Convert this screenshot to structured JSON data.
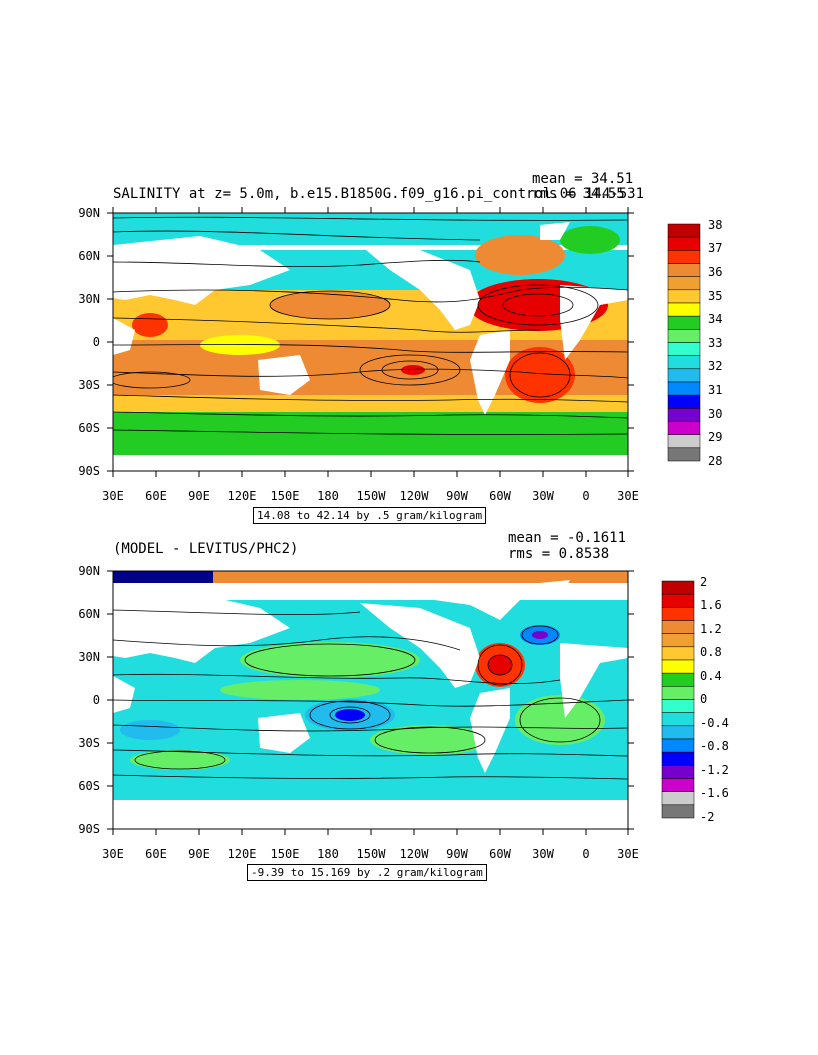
{
  "panel1": {
    "title": "SALINITY at z=    5.0m, b.e15.B1850G.f09_g16.pi_control.06 144-531",
    "mean": "mean = 34.51",
    "rms": "rms = 34.55",
    "info": "14.08 to 42.14 by .5 gram/kilogram",
    "lat_labels": [
      "90N",
      "60N",
      "30N",
      "0",
      "30S",
      "60S",
      "90S"
    ],
    "lon_labels": [
      "30E",
      "60E",
      "90E",
      "120E",
      "150E",
      "180",
      "150W",
      "120W",
      "90W",
      "60W",
      "30W",
      "0",
      "30E"
    ],
    "colorbar": {
      "labels": [
        "38",
        "37",
        "36",
        "35",
        "34",
        "33",
        "32",
        "31",
        "30",
        "29",
        "28"
      ],
      "colors": [
        "#c00000",
        "#e60000",
        "#ff3300",
        "#ee8a33",
        "#f0a030",
        "#ffc830",
        "#ffff00",
        "#22cc22",
        "#66ee66",
        "#33ffcc",
        "#22dddd",
        "#22bbee",
        "#0088ff",
        "#0000ff",
        "#7700cc",
        "#cc00cc",
        "#cccccc",
        "#777777"
      ]
    }
  },
  "panel2": {
    "title": "(MODEL - LEVITUS/PHC2)",
    "mean": "mean = -0.1611",
    "rms": "rms = 0.8538",
    "info": "-9.39 to 15.169 by .2 gram/kilogram",
    "lat_labels": [
      "90N",
      "60N",
      "30N",
      "0",
      "30S",
      "60S",
      "90S"
    ],
    "lon_labels": [
      "30E",
      "60E",
      "90E",
      "120E",
      "150E",
      "180",
      "150W",
      "120W",
      "90W",
      "60W",
      "30W",
      "0",
      "30E"
    ],
    "colorbar": {
      "labels": [
        "2",
        "1.6",
        "1.2",
        "0.8",
        "0.4",
        "0",
        "-0.4",
        "-0.8",
        "-1.2",
        "-1.6",
        "-2"
      ],
      "colors": [
        "#c00000",
        "#e60000",
        "#ff3300",
        "#ee8a33",
        "#f0a030",
        "#ffc830",
        "#ffff00",
        "#22cc22",
        "#66ee66",
        "#33ffcc",
        "#22dddd",
        "#22bbee",
        "#0088ff",
        "#0000ff",
        "#7700cc",
        "#cc00cc",
        "#cccccc",
        "#777777"
      ]
    }
  }
}
